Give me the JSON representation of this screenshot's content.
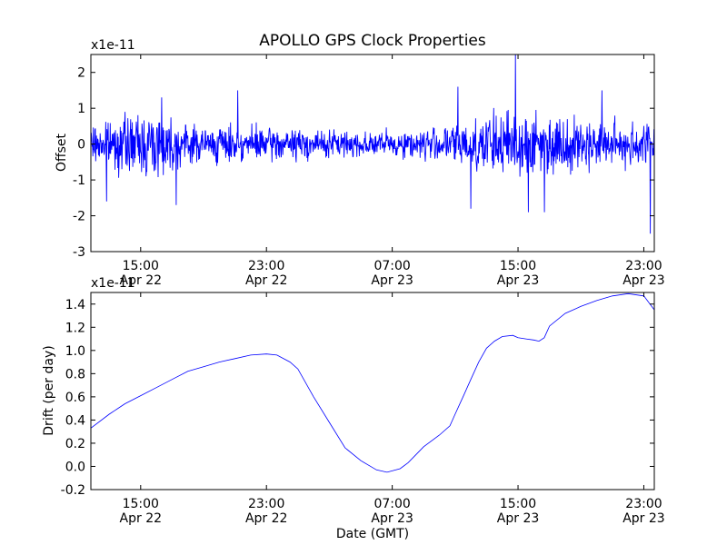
{
  "figure": {
    "title": "APOLLO GPS Clock Properties",
    "xlabel": "Date (GMT)"
  },
  "colors": {
    "series": "#0000ff",
    "axes": "#000000",
    "background": "#ffffff"
  },
  "x_ticks": [
    {
      "time": "15:00",
      "date": "Apr 22",
      "hours": 15
    },
    {
      "time": "23:00",
      "date": "Apr 22",
      "hours": 23
    },
    {
      "time": "07:00",
      "date": "Apr 23",
      "hours": 31
    },
    {
      "time": "15:00",
      "date": "Apr 23",
      "hours": 39
    },
    {
      "time": "23:00",
      "date": "Apr 23",
      "hours": 47
    }
  ],
  "chart_data": [
    {
      "type": "line",
      "title": "APOLLO GPS Clock Properties",
      "xlabel": "",
      "ylabel": "Offset",
      "scale_label": "x1e-11",
      "xlim": [
        "Apr 22 11:50",
        "Apr 23 23:40"
      ],
      "ylim": [
        -3,
        2.5
      ],
      "y_ticks": [
        -3,
        -2,
        -1,
        0,
        1,
        2
      ],
      "y_tick_labels": [
        "-3",
        "-2",
        "-1",
        "0",
        "1",
        "2"
      ],
      "grid": false,
      "noise": {
        "seed": 7,
        "baseline": 0.0,
        "envelope": [
          {
            "x": "Apr 22 11:50",
            "amp": 0.35
          },
          {
            "x": "Apr 22 14:00",
            "amp": 0.55
          },
          {
            "x": "Apr 22 16:00",
            "amp": 0.7
          },
          {
            "x": "Apr 22 18:00",
            "amp": 0.4
          },
          {
            "x": "Apr 22 21:00",
            "amp": 0.35
          },
          {
            "x": "Apr 23 02:00",
            "amp": 0.3
          },
          {
            "x": "Apr 23 06:00",
            "amp": 0.25
          },
          {
            "x": "Apr 23 10:00",
            "amp": 0.35
          },
          {
            "x": "Apr 23 12:00",
            "amp": 0.55
          },
          {
            "x": "Apr 23 15:00",
            "amp": 0.7
          },
          {
            "x": "Apr 23 17:00",
            "amp": 0.6
          },
          {
            "x": "Apr 23 20:00",
            "amp": 0.45
          },
          {
            "x": "Apr 23 23:40",
            "amp": 0.5
          }
        ],
        "spikes": [
          {
            "x": "Apr 22 12:50",
            "y": -1.6
          },
          {
            "x": "Apr 22 16:20",
            "y": 1.3
          },
          {
            "x": "Apr 22 17:15",
            "y": -1.7
          },
          {
            "x": "Apr 22 21:10",
            "y": 1.5
          },
          {
            "x": "Apr 23 11:10",
            "y": 1.6
          },
          {
            "x": "Apr 23 12:00",
            "y": -1.8
          },
          {
            "x": "Apr 23 14:50",
            "y": 2.5
          },
          {
            "x": "Apr 23 15:40",
            "y": -1.9
          },
          {
            "x": "Apr 23 16:40",
            "y": -1.9
          },
          {
            "x": "Apr 23 20:20",
            "y": 1.5
          },
          {
            "x": "Apr 23 23:25",
            "y": -2.5
          }
        ]
      },
      "series": [
        {
          "values_generated": "noise"
        }
      ]
    },
    {
      "type": "line",
      "xlabel": "Date (GMT)",
      "ylabel": "Drift (per day)",
      "scale_label": "x1e-11",
      "xlim": [
        "Apr 22 11:50",
        "Apr 23 23:40"
      ],
      "ylim": [
        -0.2,
        1.5
      ],
      "y_ticks": [
        -0.2,
        0.0,
        0.2,
        0.4,
        0.6,
        0.8,
        1.0,
        1.2,
        1.4
      ],
      "y_tick_labels": [
        "-0.2",
        "0.0",
        "0.2",
        "0.4",
        "0.6",
        "0.8",
        "1.0",
        "1.2",
        "1.4"
      ],
      "grid": false,
      "series": [
        {
          "points": [
            {
              "x": "Apr 22 11:50",
              "y": 0.33
            },
            {
              "x": "Apr 22 13:00",
              "y": 0.45
            },
            {
              "x": "Apr 22 14:00",
              "y": 0.54
            },
            {
              "x": "Apr 22 15:00",
              "y": 0.61
            },
            {
              "x": "Apr 22 16:00",
              "y": 0.68
            },
            {
              "x": "Apr 22 17:00",
              "y": 0.75
            },
            {
              "x": "Apr 22 18:00",
              "y": 0.82
            },
            {
              "x": "Apr 22 19:00",
              "y": 0.86
            },
            {
              "x": "Apr 22 20:00",
              "y": 0.9
            },
            {
              "x": "Apr 22 21:00",
              "y": 0.93
            },
            {
              "x": "Apr 22 22:00",
              "y": 0.96
            },
            {
              "x": "Apr 22 23:00",
              "y": 0.97
            },
            {
              "x": "Apr 22 23:40",
              "y": 0.96
            },
            {
              "x": "Apr 23 00:30",
              "y": 0.9
            },
            {
              "x": "Apr 23 01:00",
              "y": 0.84
            },
            {
              "x": "Apr 23 02:00",
              "y": 0.6
            },
            {
              "x": "Apr 23 03:00",
              "y": 0.38
            },
            {
              "x": "Apr 23 04:00",
              "y": 0.16
            },
            {
              "x": "Apr 23 05:00",
              "y": 0.05
            },
            {
              "x": "Apr 23 06:00",
              "y": -0.03
            },
            {
              "x": "Apr 23 06:40",
              "y": -0.05
            },
            {
              "x": "Apr 23 07:30",
              "y": -0.02
            },
            {
              "x": "Apr 23 08:00",
              "y": 0.03
            },
            {
              "x": "Apr 23 08:30",
              "y": 0.1
            },
            {
              "x": "Apr 23 09:00",
              "y": 0.17
            },
            {
              "x": "Apr 23 10:00",
              "y": 0.27
            },
            {
              "x": "Apr 23 10:40",
              "y": 0.35
            },
            {
              "x": "Apr 23 11:00",
              "y": 0.45
            },
            {
              "x": "Apr 23 11:30",
              "y": 0.6
            },
            {
              "x": "Apr 23 12:00",
              "y": 0.75
            },
            {
              "x": "Apr 23 12:30",
              "y": 0.9
            },
            {
              "x": "Apr 23 13:00",
              "y": 1.02
            },
            {
              "x": "Apr 23 13:30",
              "y": 1.08
            },
            {
              "x": "Apr 23 14:00",
              "y": 1.12
            },
            {
              "x": "Apr 23 14:40",
              "y": 1.13
            },
            {
              "x": "Apr 23 15:00",
              "y": 1.11
            },
            {
              "x": "Apr 23 15:30",
              "y": 1.1
            },
            {
              "x": "Apr 23 16:00",
              "y": 1.09
            },
            {
              "x": "Apr 23 16:20",
              "y": 1.08
            },
            {
              "x": "Apr 23 16:40",
              "y": 1.11
            },
            {
              "x": "Apr 23 17:00",
              "y": 1.21
            },
            {
              "x": "Apr 23 18:00",
              "y": 1.32
            },
            {
              "x": "Apr 23 19:00",
              "y": 1.38
            },
            {
              "x": "Apr 23 20:00",
              "y": 1.43
            },
            {
              "x": "Apr 23 21:00",
              "y": 1.47
            },
            {
              "x": "Apr 23 22:00",
              "y": 1.49
            },
            {
              "x": "Apr 23 23:00",
              "y": 1.47
            },
            {
              "x": "Apr 23 23:40",
              "y": 1.35
            }
          ]
        }
      ]
    }
  ]
}
